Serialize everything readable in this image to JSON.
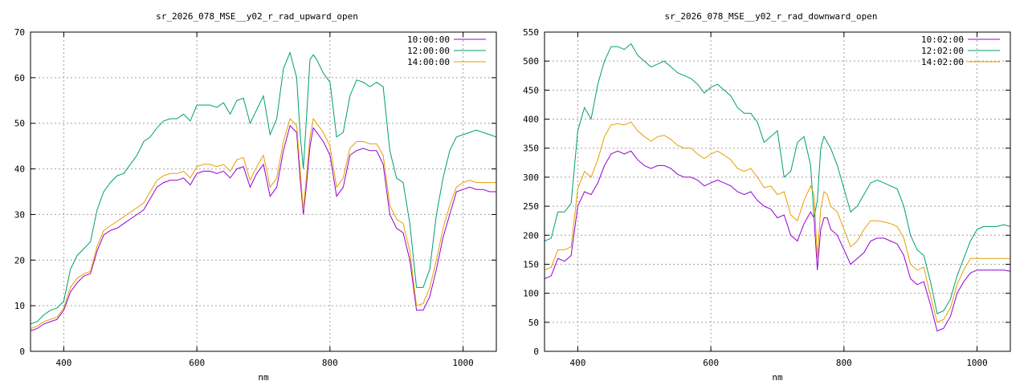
{
  "chart_data": [
    {
      "type": "line",
      "title": "sr_2026_078_MSE__y02_r_rad_upward_open",
      "xlabel": "nm",
      "ylabel": "",
      "xlim": [
        350,
        1050
      ],
      "ylim": [
        0,
        70
      ],
      "xticks": [
        400,
        600,
        800,
        1000
      ],
      "yticks": [
        0,
        10,
        20,
        30,
        40,
        50,
        60,
        70
      ],
      "grid": true,
      "legend_position": "top-right",
      "series": [
        {
          "name": "10:00:00",
          "color": "#9400d3",
          "x": [
            350,
            360,
            370,
            380,
            390,
            400,
            410,
            420,
            430,
            440,
            450,
            460,
            470,
            480,
            490,
            500,
            510,
            520,
            530,
            540,
            550,
            560,
            570,
            580,
            590,
            600,
            610,
            620,
            630,
            640,
            650,
            660,
            670,
            680,
            690,
            700,
            710,
            720,
            730,
            740,
            750,
            755,
            760,
            765,
            770,
            775,
            780,
            790,
            800,
            810,
            820,
            830,
            840,
            850,
            860,
            870,
            880,
            890,
            900,
            910,
            920,
            930,
            940,
            950,
            960,
            970,
            980,
            990,
            1000,
            1010,
            1020,
            1030,
            1040,
            1050
          ],
          "y": [
            4.5,
            5,
            6,
            6.5,
            7,
            9,
            13,
            15,
            16.5,
            17,
            22,
            25.5,
            26.5,
            27,
            28,
            29,
            30,
            31,
            33.5,
            36,
            37,
            37.5,
            37.5,
            38,
            36.5,
            39,
            39.5,
            39.5,
            39,
            39.5,
            38,
            40,
            40.5,
            36,
            39,
            41,
            34,
            36,
            44,
            49.5,
            48,
            38,
            30,
            37,
            45,
            49,
            48,
            46,
            43,
            34,
            36,
            43,
            44,
            44.5,
            44,
            44,
            41,
            30,
            27,
            26,
            20,
            9,
            9,
            12,
            18,
            25,
            30,
            35,
            35.5,
            36,
            35.5,
            35.5,
            35,
            35
          ]
        },
        {
          "name": "12:00:00",
          "color": "#009e73",
          "x": [
            350,
            360,
            370,
            380,
            390,
            400,
            410,
            420,
            430,
            440,
            450,
            460,
            470,
            480,
            490,
            500,
            510,
            520,
            530,
            540,
            550,
            560,
            570,
            580,
            590,
            600,
            610,
            620,
            630,
            640,
            650,
            660,
            670,
            680,
            690,
            700,
            710,
            720,
            730,
            740,
            750,
            755,
            760,
            765,
            770,
            775,
            780,
            790,
            800,
            810,
            820,
            830,
            840,
            850,
            860,
            870,
            880,
            890,
            900,
            910,
            920,
            930,
            940,
            950,
            960,
            970,
            980,
            990,
            1000,
            1010,
            1020,
            1030,
            1040,
            1050
          ],
          "y": [
            6,
            6.5,
            8,
            9,
            9.5,
            11,
            18,
            21,
            22.5,
            24,
            31,
            35,
            37,
            38.5,
            39,
            41,
            43,
            46,
            47,
            49,
            50.5,
            51,
            51,
            52,
            50.5,
            54,
            54,
            54,
            53.5,
            54.5,
            52,
            55,
            55.5,
            50,
            53,
            56,
            47.5,
            51,
            62,
            65.5,
            60,
            48,
            40,
            52,
            64,
            65,
            64,
            61,
            59,
            47,
            48,
            56,
            59.5,
            59,
            58,
            59,
            58,
            44,
            38,
            37,
            28,
            14,
            14,
            18,
            30,
            38,
            44,
            47,
            47.5,
            48,
            48.5,
            48,
            47.5,
            47
          ]
        },
        {
          "name": "14:00:00",
          "color": "#e69f00",
          "x": [
            350,
            360,
            370,
            380,
            390,
            400,
            410,
            420,
            430,
            440,
            450,
            460,
            470,
            480,
            490,
            500,
            510,
            520,
            530,
            540,
            550,
            560,
            570,
            580,
            590,
            600,
            610,
            620,
            630,
            640,
            650,
            660,
            670,
            680,
            690,
            700,
            710,
            720,
            730,
            740,
            750,
            755,
            760,
            765,
            770,
            775,
            780,
            790,
            800,
            810,
            820,
            830,
            840,
            850,
            860,
            870,
            880,
            890,
            900,
            910,
            920,
            930,
            940,
            950,
            960,
            970,
            980,
            990,
            1000,
            1010,
            1020,
            1030,
            1040,
            1050
          ],
          "y": [
            5,
            5.5,
            6.5,
            7,
            7.5,
            9.5,
            14,
            16,
            17,
            17.5,
            23,
            26.5,
            27.5,
            28.5,
            29.5,
            30.5,
            31.5,
            32.5,
            35,
            37.5,
            38.5,
            39,
            39,
            39.5,
            38,
            40.5,
            41,
            41,
            40.5,
            41,
            39.5,
            42,
            42.5,
            37.5,
            40.5,
            43,
            36,
            38,
            46,
            51,
            49.5,
            40,
            31,
            39,
            47,
            51,
            50,
            48,
            45,
            36,
            38,
            44.5,
            46,
            46,
            45.5,
            45.5,
            43,
            32,
            29,
            28,
            22,
            10,
            10.5,
            14,
            20,
            27,
            32,
            36,
            37,
            37.5,
            37,
            37,
            37,
            37
          ]
        }
      ]
    },
    {
      "type": "line",
      "title": "sr_2026_078_MSE__y02_r_rad_downward_open",
      "xlabel": "nm",
      "ylabel": "",
      "xlim": [
        350,
        1050
      ],
      "ylim": [
        0,
        550
      ],
      "xticks": [
        400,
        600,
        800,
        1000
      ],
      "yticks": [
        0,
        50,
        100,
        150,
        200,
        250,
        300,
        350,
        400,
        450,
        500,
        550
      ],
      "grid": true,
      "legend_position": "top-right",
      "series": [
        {
          "name": "10:02:00",
          "color": "#9400d3",
          "x": [
            350,
            360,
            370,
            380,
            390,
            400,
            410,
            420,
            430,
            440,
            450,
            460,
            470,
            480,
            490,
            500,
            510,
            520,
            530,
            540,
            550,
            560,
            570,
            580,
            590,
            600,
            610,
            620,
            630,
            640,
            650,
            660,
            670,
            680,
            690,
            700,
            710,
            720,
            730,
            740,
            750,
            755,
            760,
            765,
            770,
            775,
            780,
            790,
            800,
            810,
            820,
            830,
            840,
            850,
            860,
            870,
            880,
            890,
            900,
            910,
            920,
            930,
            940,
            950,
            960,
            970,
            980,
            990,
            1000,
            1010,
            1020,
            1030,
            1040,
            1050
          ],
          "y": [
            125,
            130,
            160,
            155,
            165,
            250,
            275,
            270,
            290,
            320,
            340,
            345,
            340,
            345,
            330,
            320,
            315,
            320,
            320,
            315,
            305,
            300,
            300,
            295,
            285,
            290,
            295,
            290,
            285,
            275,
            270,
            275,
            260,
            250,
            245,
            230,
            235,
            200,
            190,
            220,
            240,
            230,
            140,
            210,
            230,
            230,
            210,
            200,
            175,
            150,
            160,
            170,
            190,
            195,
            195,
            190,
            185,
            165,
            125,
            115,
            120,
            80,
            35,
            40,
            60,
            100,
            120,
            135,
            140,
            140,
            140,
            140,
            140,
            138
          ]
        },
        {
          "name": "12:02:00",
          "color": "#009e73",
          "x": [
            350,
            360,
            370,
            380,
            390,
            400,
            410,
            420,
            430,
            440,
            450,
            460,
            470,
            480,
            490,
            500,
            510,
            520,
            530,
            540,
            550,
            560,
            570,
            580,
            590,
            600,
            610,
            620,
            630,
            640,
            650,
            660,
            670,
            680,
            690,
            700,
            710,
            720,
            730,
            740,
            750,
            755,
            760,
            765,
            770,
            775,
            780,
            790,
            800,
            810,
            820,
            830,
            840,
            850,
            860,
            870,
            880,
            890,
            900,
            910,
            920,
            930,
            940,
            950,
            960,
            970,
            980,
            990,
            1000,
            1010,
            1020,
            1030,
            1040,
            1050
          ],
          "y": [
            190,
            195,
            240,
            240,
            255,
            380,
            420,
            400,
            460,
            500,
            525,
            525,
            520,
            530,
            510,
            500,
            490,
            495,
            500,
            490,
            480,
            475,
            470,
            460,
            445,
            455,
            460,
            450,
            440,
            420,
            410,
            410,
            395,
            360,
            370,
            380,
            300,
            310,
            360,
            370,
            320,
            230,
            260,
            350,
            370,
            360,
            350,
            320,
            280,
            240,
            250,
            270,
            290,
            295,
            290,
            285,
            280,
            250,
            200,
            175,
            165,
            120,
            65,
            70,
            90,
            130,
            160,
            190,
            210,
            215,
            215,
            215,
            218,
            215
          ]
        },
        {
          "name": "14:02:00",
          "color": "#e69f00",
          "x": [
            350,
            360,
            370,
            380,
            390,
            400,
            410,
            420,
            430,
            440,
            450,
            460,
            470,
            480,
            490,
            500,
            510,
            520,
            530,
            540,
            550,
            560,
            570,
            580,
            590,
            600,
            610,
            620,
            630,
            640,
            650,
            660,
            670,
            680,
            690,
            700,
            710,
            720,
            730,
            740,
            750,
            755,
            760,
            765,
            770,
            775,
            780,
            790,
            800,
            810,
            820,
            830,
            840,
            850,
            860,
            870,
            880,
            890,
            900,
            910,
            920,
            930,
            940,
            950,
            960,
            970,
            980,
            990,
            1000,
            1010,
            1020,
            1030,
            1040,
            1050
          ],
          "y": [
            140,
            145,
            175,
            175,
            180,
            280,
            310,
            300,
            330,
            370,
            390,
            392,
            390,
            395,
            380,
            370,
            362,
            370,
            372,
            365,
            355,
            350,
            350,
            340,
            332,
            340,
            345,
            338,
            330,
            315,
            310,
            315,
            300,
            282,
            285,
            270,
            275,
            235,
            225,
            260,
            285,
            270,
            160,
            245,
            275,
            270,
            250,
            240,
            210,
            180,
            190,
            210,
            225,
            225,
            223,
            220,
            215,
            195,
            150,
            140,
            145,
            95,
            50,
            55,
            75,
            115,
            140,
            160,
            160,
            160,
            160,
            160,
            160,
            160
          ]
        }
      ]
    }
  ]
}
